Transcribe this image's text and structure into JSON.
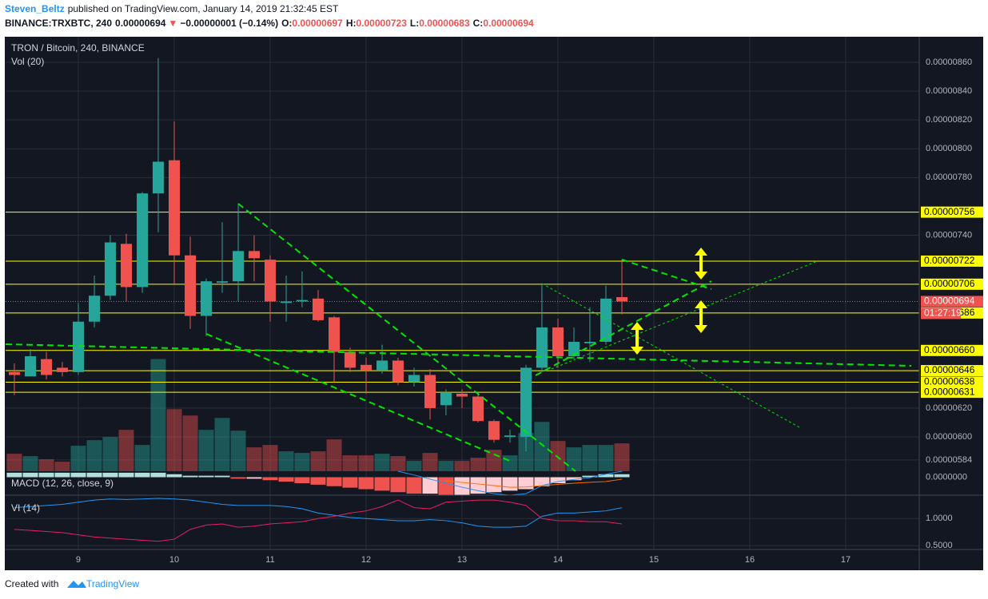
{
  "header": {
    "author": "Steven_Beltz",
    "published": "published on TradingView.com, January 14, 2019 21:32:45 EST",
    "symbol": "BINANCE:TRXBTC, 240",
    "price": "0.00000694",
    "direction": "▼",
    "change": "−0.00000001 (−0.14%)",
    "ohlc": [
      {
        "key": "O:",
        "value": "0.00000697"
      },
      {
        "key": "H:",
        "value": "0.00000723"
      },
      {
        "key": "L:",
        "value": "0.00000683"
      },
      {
        "key": "C:",
        "value": "0.00000694"
      }
    ]
  },
  "footer": {
    "created": "Created with",
    "brand": "TradingView"
  },
  "chart_data": {
    "type": "candlestick",
    "title": "TRON / Bitcoin, 240, BINANCE",
    "x": [
      8.333,
      8.5,
      8.667,
      8.833,
      9,
      9.167,
      9.333,
      9.5,
      9.667,
      9.833,
      10,
      10.167,
      10.333,
      10.5,
      10.667,
      10.833,
      11,
      11.167,
      11.333,
      11.5,
      11.667,
      11.833,
      12,
      12.167,
      12.333,
      12.5,
      12.667,
      12.833,
      13,
      13.167,
      13.333,
      13.5,
      13.667,
      13.833,
      14,
      14.167,
      14.333,
      14.5,
      14.667
    ],
    "xlim": [
      8.2417,
      17.767
    ],
    "xticks": [
      9,
      10,
      11,
      12,
      13,
      14,
      15,
      16,
      17
    ],
    "ylim": [
      5.762e-06,
      8.744e-06
    ],
    "yticks": [
      {
        "value": 8.6e-06,
        "label": "0.00000860"
      },
      {
        "value": 8.4e-06,
        "label": "0.00000840"
      },
      {
        "value": 8.2e-06,
        "label": "0.00000820"
      },
      {
        "value": 8e-06,
        "label": "0.00000800"
      },
      {
        "value": 7.8e-06,
        "label": "0.00000780"
      },
      {
        "value": 7.4e-06,
        "label": "0.00000740"
      },
      {
        "value": 6.2e-06,
        "label": "0.00000620"
      },
      {
        "value": 6e-06,
        "label": "0.00000600"
      },
      {
        "value": 5.84e-06,
        "label": "0.00000584"
      }
    ],
    "open": [
      6.45e-06,
      6.42e-06,
      6.54e-06,
      6.48e-06,
      6.45e-06,
      6.8e-06,
      6.98e-06,
      7.34e-06,
      7.04e-06,
      7.69e-06,
      7.92e-06,
      7.26e-06,
      6.84e-06,
      7.07e-06,
      7.08e-06,
      7.29e-06,
      7.23e-06,
      6.93e-06,
      6.94e-06,
      6.96e-06,
      6.83e-06,
      6.59e-06,
      6.5e-06,
      6.46e-06,
      6.53e-06,
      6.38e-06,
      6.43e-06,
      6.22e-06,
      6.3e-06,
      6.28e-06,
      6.11e-06,
      6e-06,
      6e-06,
      6.48e-06,
      6.76e-06,
      6.56e-06,
      6.65e-06,
      6.66e-06,
      6.97e-06
    ],
    "high": [
      6.51e-06,
      6.61e-06,
      6.59e-06,
      6.52e-06,
      6.93e-06,
      7.12e-06,
      7.4e-06,
      7.41e-06,
      7.7e-06,
      8.63e-06,
      8.19e-06,
      7.39e-06,
      7.1e-06,
      7.49e-06,
      7.62e-06,
      7.4e-06,
      7.26e-06,
      7.12e-06,
      7.15e-06,
      7.02e-06,
      6.84e-06,
      6.62e-06,
      6.55e-06,
      6.64e-06,
      6.55e-06,
      6.48e-06,
      6.47e-06,
      6.33e-06,
      6.33e-06,
      6.31e-06,
      6.12e-06,
      6.05e-06,
      6.5e-06,
      7.06e-06,
      6.82e-06,
      6.76e-06,
      6.9e-06,
      7.05e-06,
      7.23e-06
    ],
    "low": [
      6.29e-06,
      6.42e-06,
      6.4e-06,
      6.42e-06,
      6.43e-06,
      6.76e-06,
      6.95e-06,
      6.94e-06,
      7e-06,
      7.42e-06,
      7.06e-06,
      6.75e-06,
      6.7e-06,
      7e-06,
      6.94e-06,
      7.08e-06,
      6.8e-06,
      6.8e-06,
      6.9e-06,
      6.8e-06,
      6.38e-06,
      6.45e-06,
      6.3e-06,
      6.44e-06,
      6.36e-06,
      6.35e-06,
      6.12e-06,
      6.15e-06,
      6.2e-06,
      6.1e-06,
      5.96e-06,
      5.96e-06,
      5.9e-06,
      6.45e-06,
      6.48e-06,
      6.54e-06,
      6.52e-06,
      6.64e-06,
      6.85e-06
    ],
    "close": [
      6.43e-06,
      6.56e-06,
      6.43e-06,
      6.45e-06,
      6.8e-06,
      6.98e-06,
      7.35e-06,
      7.04e-06,
      7.69e-06,
      7.91e-06,
      7.26e-06,
      6.84e-06,
      7.08e-06,
      7.08e-06,
      7.29e-06,
      7.24e-06,
      6.94e-06,
      6.94e-06,
      6.95e-06,
      6.81e-06,
      6.59e-06,
      6.48e-06,
      6.46e-06,
      6.53e-06,
      6.38e-06,
      6.43e-06,
      6.2e-06,
      6.31e-06,
      6.28e-06,
      6.11e-06,
      5.98e-06,
      6.01e-06,
      6.48e-06,
      6.76e-06,
      6.56e-06,
      6.66e-06,
      6.66e-06,
      6.96e-06,
      6.94e-06
    ],
    "up_color": "#26a69a",
    "down_color": "#ef5350",
    "levels": [
      {
        "value": 7.56e-06,
        "label": "0.00000756"
      },
      {
        "value": 7.22e-06,
        "label": "0.00000722"
      },
      {
        "value": 7.06e-06,
        "label": "0.00000706"
      },
      {
        "value": 6.86e-06,
        "label": "0.00000686"
      },
      {
        "value": 6.6e-06,
        "label": "0.00000660"
      },
      {
        "value": 6.46e-06,
        "label": "0.00000646"
      },
      {
        "value": 6.38e-06,
        "label": "0.00000638"
      },
      {
        "value": 6.31e-06,
        "label": "0.00000631"
      }
    ],
    "level_color": "#ffff00",
    "last": {
      "value": 6.94e-06,
      "label": "0.00000694",
      "countdown": "01:27:19"
    },
    "volume": {
      "label": "Vol (20)",
      "ylim": [
        0,
        540
      ],
      "values": [
        22,
        19,
        15,
        12,
        32,
        39,
        43,
        52,
        33,
        141,
        78,
        70,
        52,
        67,
        51,
        30,
        33,
        25,
        23,
        25,
        40,
        20,
        20,
        22,
        19,
        13,
        23,
        13,
        13,
        17,
        27,
        20,
        48,
        62,
        38,
        30,
        33,
        33,
        35
      ]
    },
    "macd": {
      "label": "MACD (12, 26, close, 9)",
      "ylim": [
        -12,
        4
      ],
      "yticks": [
        {
          "value": 0,
          "label": "0.0000000"
        }
      ],
      "histogram": [
        3,
        3,
        3,
        3,
        3,
        3,
        3,
        3,
        3,
        3,
        2,
        1,
        1,
        1,
        -1,
        -1,
        -2,
        -3,
        -4,
        -5,
        -6,
        -7,
        -8,
        -9,
        -10,
        -11,
        -11,
        -12,
        -12,
        -11,
        -10,
        -9,
        -8,
        -6,
        -4,
        -2,
        1,
        2,
        2
      ],
      "hist_colors": {
        "up": "#b2dfdb",
        "down": "#ef5350",
        "down_weak": "#ffcdd2"
      },
      "series": [
        {
          "name": "MACD",
          "color": "#2196f3",
          "values": [
            null,
            null,
            null,
            null,
            null,
            null,
            null,
            null,
            null,
            null,
            null,
            null,
            null,
            null,
            null,
            null,
            null,
            null,
            null,
            null,
            null,
            null,
            null,
            null,
            4,
            1.5,
            -1.3,
            -4,
            -6.7,
            -9,
            -11,
            -12,
            -11,
            -5.6,
            -2.9,
            -1.5,
            -0.3,
            2,
            4
          ]
        },
        {
          "name": "Signal",
          "color": "#ff6d00",
          "values": [
            null,
            null,
            null,
            null,
            null,
            null,
            null,
            null,
            null,
            null,
            null,
            null,
            null,
            null,
            null,
            null,
            null,
            null,
            null,
            null,
            null,
            null,
            null,
            null,
            null,
            null,
            null,
            -2.4,
            -3.5,
            -4.5,
            -5.6,
            -6.7,
            -6.5,
            -5.6,
            -4.8,
            -4,
            -3.4,
            -2.9,
            -1.3
          ]
        }
      ]
    },
    "vi": {
      "label": "VI (14)",
      "ylim": [
        0.43,
        1.4
      ],
      "yticks": [
        {
          "value": 1,
          "label": "1.0000"
        },
        {
          "value": 0.5,
          "label": "0.5000"
        }
      ],
      "series": [
        {
          "name": "VI+",
          "color": "#2196f3",
          "values": [
            1.2,
            1.22,
            1.24,
            1.26,
            1.3,
            1.34,
            1.36,
            1.35,
            1.36,
            1.37,
            1.36,
            1.34,
            1.3,
            1.26,
            1.24,
            1.24,
            1.24,
            1.22,
            1.18,
            1.1,
            1.06,
            1.02,
            1,
            0.98,
            0.96,
            0.96,
            0.98,
            0.96,
            0.92,
            0.86,
            0.84,
            0.84,
            0.86,
            1.04,
            1.1,
            1.1,
            1.12,
            1.14,
            1.2
          ]
        },
        {
          "name": "VI-",
          "color": "#e91e63",
          "values": [
            0.8,
            0.78,
            0.76,
            0.74,
            0.7,
            0.66,
            0.64,
            0.62,
            0.6,
            0.58,
            0.62,
            0.8,
            0.88,
            0.9,
            0.84,
            0.86,
            0.9,
            0.92,
            0.94,
            1,
            1.04,
            1.1,
            1.14,
            1.22,
            1.34,
            1.2,
            1.18,
            1.3,
            1.32,
            1.34,
            1.34,
            1.3,
            1.24,
            1,
            0.96,
            0.96,
            0.94,
            0.94,
            0.9
          ]
        }
      ]
    }
  }
}
